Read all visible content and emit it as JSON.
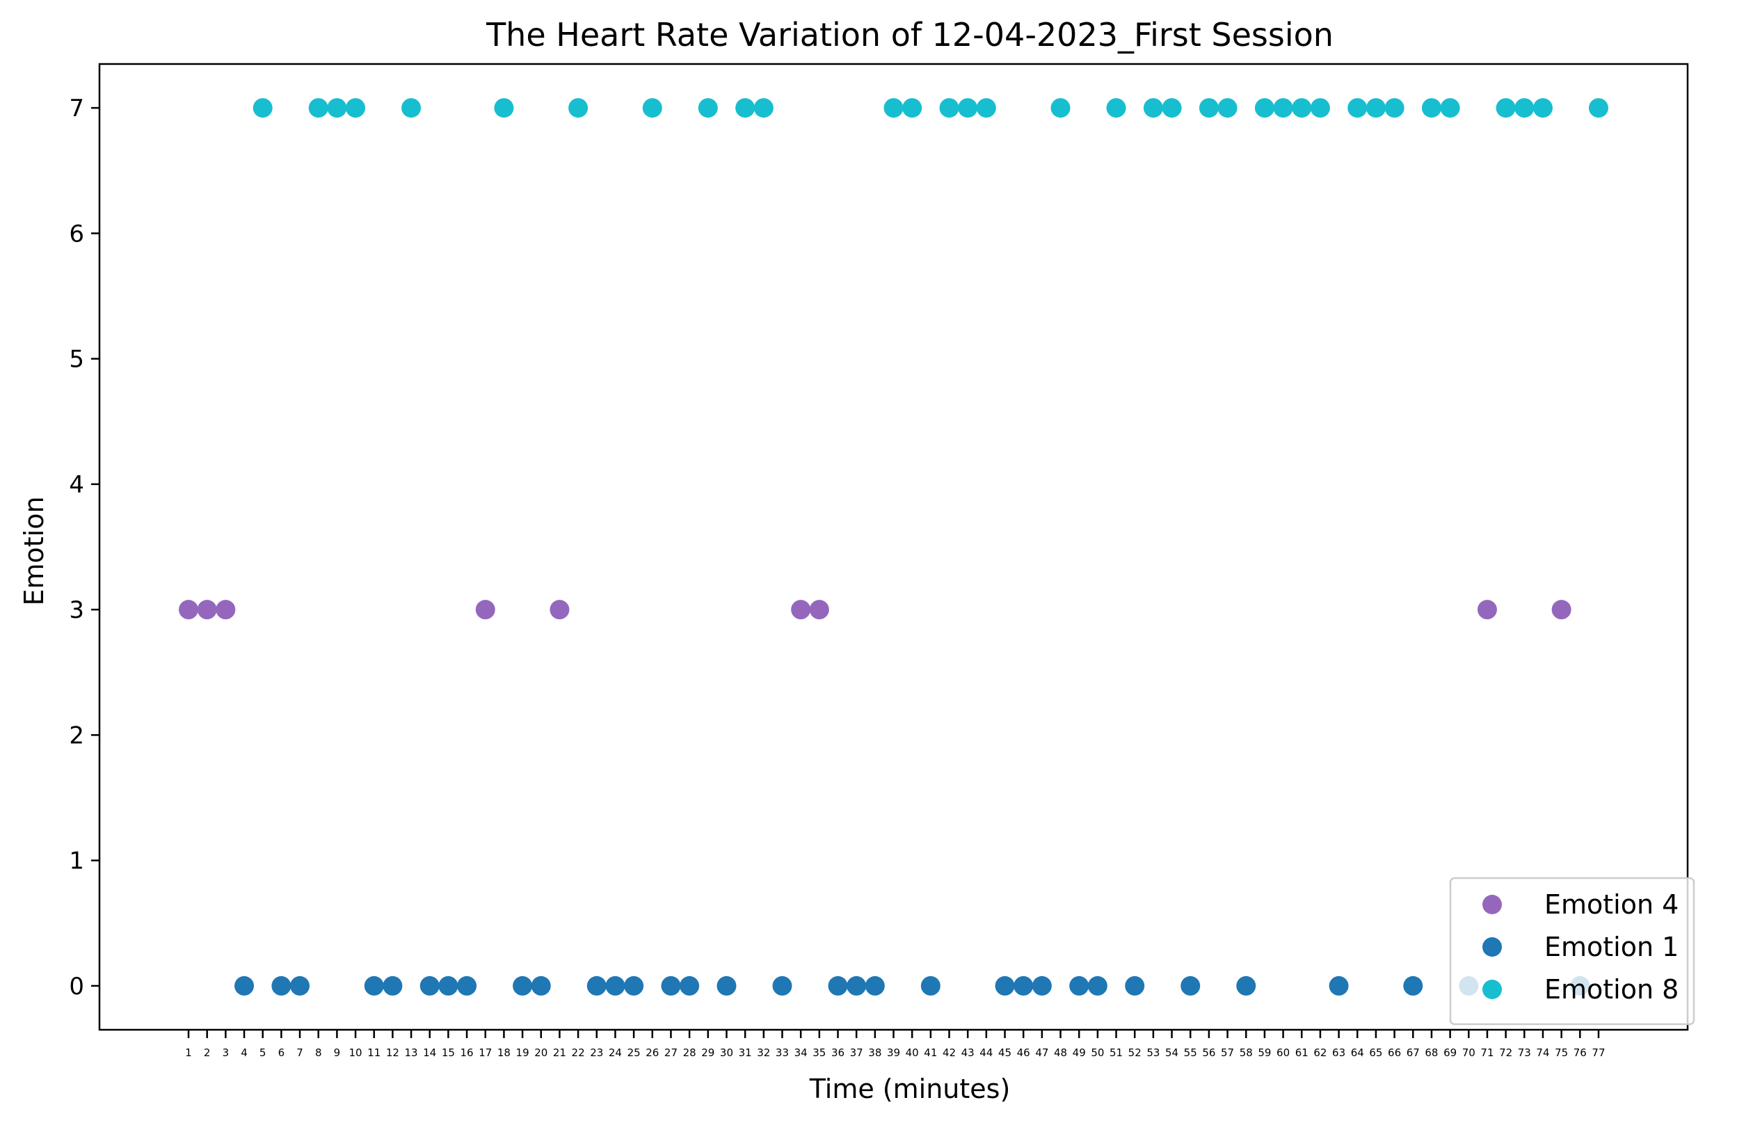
{
  "chart_data": {
    "type": "scatter",
    "title": "The Heart Rate Variation of 12-04-2023_First Session",
    "xlabel": "Time (minutes)",
    "ylabel": "Emotion",
    "xlim": [
      -3.8,
      81.8
    ],
    "ylim": [
      -0.35,
      7.35
    ],
    "x_ticks": [
      1,
      2,
      3,
      4,
      5,
      6,
      7,
      8,
      9,
      10,
      11,
      12,
      13,
      14,
      15,
      16,
      17,
      18,
      19,
      20,
      21,
      22,
      23,
      24,
      25,
      26,
      27,
      28,
      29,
      30,
      31,
      32,
      33,
      34,
      35,
      36,
      37,
      38,
      39,
      40,
      41,
      42,
      43,
      44,
      45,
      46,
      47,
      48,
      49,
      50,
      51,
      52,
      53,
      54,
      55,
      56,
      57,
      58,
      59,
      60,
      61,
      62,
      63,
      64,
      65,
      66,
      67,
      68,
      69,
      70,
      71,
      72,
      73,
      74,
      75,
      76,
      77
    ],
    "y_ticks": [
      0,
      1,
      2,
      3,
      4,
      5,
      6,
      7
    ],
    "grid": false,
    "legend_position": "lower-right",
    "series": [
      {
        "name": "Emotion 4",
        "color": "#9467bd",
        "points": [
          [
            1,
            3
          ],
          [
            2,
            3
          ],
          [
            3,
            3
          ],
          [
            17,
            3
          ],
          [
            21,
            3
          ],
          [
            34,
            3
          ],
          [
            35,
            3
          ],
          [
            71,
            3
          ],
          [
            75,
            3
          ]
        ]
      },
      {
        "name": "Emotion 1",
        "color": "#1f77b4",
        "points": [
          [
            4,
            0
          ],
          [
            6,
            0
          ],
          [
            7,
            0
          ],
          [
            11,
            0
          ],
          [
            12,
            0
          ],
          [
            14,
            0
          ],
          [
            15,
            0
          ],
          [
            16,
            0
          ],
          [
            19,
            0
          ],
          [
            20,
            0
          ],
          [
            23,
            0
          ],
          [
            24,
            0
          ],
          [
            25,
            0
          ],
          [
            27,
            0
          ],
          [
            28,
            0
          ],
          [
            30,
            0
          ],
          [
            33,
            0
          ],
          [
            36,
            0
          ],
          [
            37,
            0
          ],
          [
            38,
            0
          ],
          [
            41,
            0
          ],
          [
            45,
            0
          ],
          [
            46,
            0
          ],
          [
            47,
            0
          ],
          [
            49,
            0
          ],
          [
            50,
            0
          ],
          [
            52,
            0
          ],
          [
            55,
            0
          ],
          [
            58,
            0
          ],
          [
            63,
            0
          ],
          [
            67,
            0
          ],
          [
            70,
            0
          ],
          [
            76,
            0
          ]
        ]
      },
      {
        "name": "Emotion 8",
        "color": "#17becf",
        "points": [
          [
            5,
            7
          ],
          [
            8,
            7
          ],
          [
            9,
            7
          ],
          [
            10,
            7
          ],
          [
            13,
            7
          ],
          [
            18,
            7
          ],
          [
            22,
            7
          ],
          [
            26,
            7
          ],
          [
            29,
            7
          ],
          [
            31,
            7
          ],
          [
            32,
            7
          ],
          [
            39,
            7
          ],
          [
            40,
            7
          ],
          [
            42,
            7
          ],
          [
            43,
            7
          ],
          [
            44,
            7
          ],
          [
            48,
            7
          ],
          [
            51,
            7
          ],
          [
            53,
            7
          ],
          [
            54,
            7
          ],
          [
            56,
            7
          ],
          [
            57,
            7
          ],
          [
            59,
            7
          ],
          [
            60,
            7
          ],
          [
            61,
            7
          ],
          [
            62,
            7
          ],
          [
            64,
            7
          ],
          [
            65,
            7
          ],
          [
            66,
            7
          ],
          [
            68,
            7
          ],
          [
            69,
            7
          ],
          [
            72,
            7
          ],
          [
            73,
            7
          ],
          [
            74,
            7
          ],
          [
            77,
            7
          ]
        ]
      }
    ]
  }
}
